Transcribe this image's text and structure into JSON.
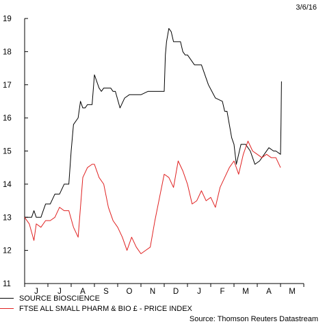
{
  "chart_data": {
    "type": "line",
    "date_label": "3/6/16",
    "ylim": [
      11,
      19
    ],
    "yticks": [
      11,
      12,
      13,
      14,
      15,
      16,
      17,
      18,
      19
    ],
    "month_labels": [
      "J",
      "J",
      "A",
      "S",
      "O",
      "N",
      "D",
      "J",
      "F",
      "M",
      "A",
      "M"
    ],
    "source": "Source: Thomson Reuters Datastream",
    "series": [
      {
        "name": "SOURCE BIOSCIENCE",
        "color": "#000000",
        "t": [
          0.0,
          0.3,
          0.4,
          0.5,
          0.7,
          0.8,
          0.9,
          1.1,
          1.3,
          1.5,
          1.7,
          1.9,
          2.0,
          2.1,
          2.3,
          2.4,
          2.5,
          2.6,
          2.7,
          2.9,
          3.0,
          3.2,
          3.3,
          3.4,
          3.5,
          3.6,
          3.7,
          3.8,
          3.9,
          4.1,
          4.3,
          4.5,
          4.7,
          5.0,
          5.3,
          5.6,
          5.9,
          6.0,
          6.05,
          6.1,
          6.2,
          6.3,
          6.4,
          6.5,
          6.6,
          6.7,
          6.8,
          6.9,
          7.0,
          7.3,
          7.6,
          7.9,
          8.2,
          8.5,
          8.6,
          8.7,
          8.9,
          9.0,
          9.1,
          9.3,
          9.5,
          9.7,
          9.9,
          10.1,
          10.3,
          10.5,
          10.7,
          10.8,
          11.0,
          11.02,
          11.04
        ],
        "values": [
          13.0,
          13.0,
          13.2,
          13.0,
          13.0,
          13.2,
          13.4,
          13.4,
          13.7,
          13.7,
          14.0,
          14.0,
          15.0,
          15.8,
          16.0,
          16.5,
          16.3,
          16.3,
          16.4,
          16.4,
          17.3,
          16.9,
          16.8,
          16.9,
          16.9,
          16.9,
          16.9,
          16.8,
          16.8,
          16.3,
          16.6,
          16.7,
          16.7,
          16.7,
          16.8,
          16.8,
          16.8,
          16.8,
          17.9,
          18.3,
          18.7,
          18.6,
          18.3,
          18.3,
          18.3,
          18.3,
          18.0,
          17.9,
          17.9,
          17.6,
          17.6,
          17.0,
          16.6,
          16.5,
          16.2,
          16.2,
          15.4,
          15.2,
          14.6,
          15.2,
          15.2,
          15.0,
          14.6,
          14.7,
          14.9,
          15.1,
          15.0,
          15.0,
          14.9,
          15.8,
          17.1
        ]
      },
      {
        "name": "FTSE ALL SMALL PHARM & BIO £ - PRICE INDEX",
        "color": "#e02020",
        "t": [
          0.0,
          0.2,
          0.4,
          0.5,
          0.7,
          0.9,
          1.1,
          1.3,
          1.5,
          1.7,
          1.9,
          2.1,
          2.3,
          2.5,
          2.7,
          2.9,
          3.0,
          3.2,
          3.4,
          3.6,
          3.8,
          4.0,
          4.2,
          4.4,
          4.6,
          4.8,
          5.0,
          5.2,
          5.4,
          5.6,
          5.8,
          6.0,
          6.2,
          6.4,
          6.6,
          6.8,
          7.0,
          7.2,
          7.4,
          7.6,
          7.8,
          8.0,
          8.2,
          8.4,
          8.6,
          8.8,
          9.0,
          9.2,
          9.4,
          9.6,
          9.8,
          10.0,
          10.2,
          10.4,
          10.6,
          10.8,
          11.0
        ],
        "values": [
          13.0,
          12.8,
          12.3,
          12.8,
          12.7,
          12.9,
          12.9,
          13.0,
          13.3,
          13.2,
          13.2,
          12.7,
          12.4,
          14.2,
          14.5,
          14.6,
          14.6,
          14.2,
          14.0,
          13.3,
          12.9,
          12.7,
          12.4,
          12.0,
          12.4,
          12.1,
          11.9,
          12.0,
          12.1,
          12.9,
          13.6,
          14.3,
          14.2,
          13.9,
          14.7,
          14.4,
          14.0,
          13.4,
          13.5,
          13.8,
          13.5,
          13.6,
          13.3,
          13.9,
          14.2,
          14.5,
          14.7,
          14.3,
          14.9,
          15.3,
          15.0,
          14.9,
          14.8,
          14.9,
          14.8,
          14.8,
          14.5
        ]
      }
    ]
  }
}
